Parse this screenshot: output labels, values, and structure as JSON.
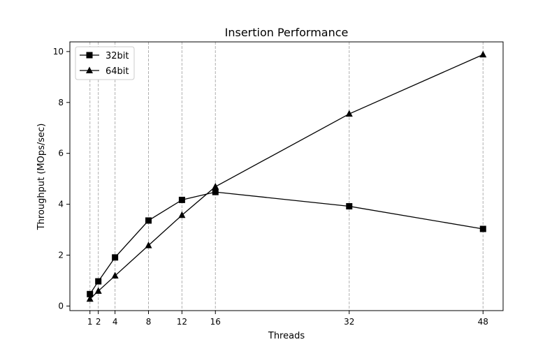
{
  "chart_data": {
    "type": "line",
    "title": "Insertion Performance",
    "xlabel": "Threads",
    "ylabel": "Throughput (MOps/sec)",
    "x": [
      1,
      2,
      4,
      8,
      12,
      16,
      32,
      48
    ],
    "xticks": [
      "1",
      "2",
      "4",
      "8",
      "12",
      "16",
      "32",
      "48"
    ],
    "yticks": [
      "0",
      "2",
      "4",
      "6",
      "8",
      "10"
    ],
    "xlim": [
      -1.4,
      50.4
    ],
    "ylim": [
      -0.18,
      10.38
    ],
    "grid": "vertical dashed at x ticks",
    "legend": "upper left",
    "series": [
      {
        "name": "32bit",
        "marker": "square",
        "values": [
          0.47,
          0.97,
          1.91,
          3.36,
          4.17,
          4.48,
          3.92,
          3.03
        ]
      },
      {
        "name": "64bit",
        "marker": "triangle",
        "values": [
          0.28,
          0.59,
          1.19,
          2.38,
          3.57,
          4.69,
          7.55,
          9.88
        ]
      }
    ]
  },
  "colors": {
    "line": "#000000",
    "grid": "#b0b0b0"
  }
}
